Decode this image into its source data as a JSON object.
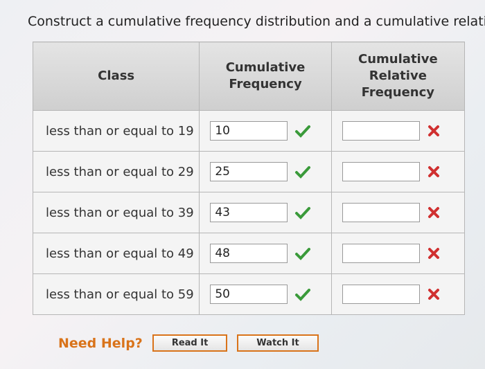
{
  "instruction": "Construct a cumulative frequency distribution and a cumulative relativ",
  "table": {
    "headers": [
      "Class",
      "Cumulative Frequency",
      "Cumulative Relative Frequency"
    ],
    "rows": [
      {
        "class": "less than or equal to 19",
        "cumulative_frequency": 10
      },
      {
        "class": "less than or equal to 29",
        "cumulative_frequency": 25
      },
      {
        "class": "less than or equal to 39",
        "cumulative_frequency": 43
      },
      {
        "class": "less than or equal to 49",
        "cumulative_frequency": 48
      },
      {
        "class": "less than or equal to 59",
        "cumulative_frequency": 50
      }
    ]
  },
  "help": {
    "label": "Need Help?",
    "buttons": [
      "Read It",
      "Watch It"
    ]
  }
}
